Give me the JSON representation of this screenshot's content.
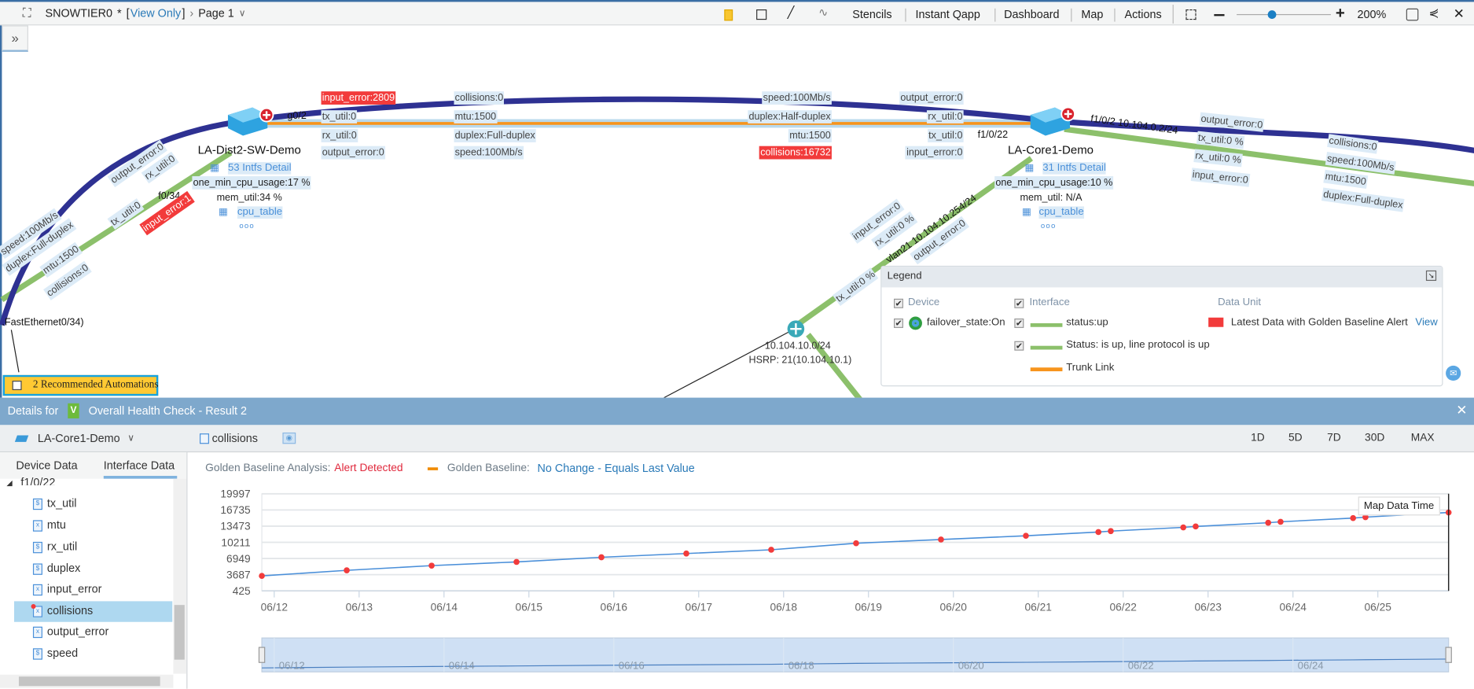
{
  "topbar": {
    "title": "SNOWTIER0",
    "modified_marker": "*",
    "mode_open": "[",
    "mode": "View Only",
    "mode_close": "]",
    "page": "Page 1",
    "tools": [
      "Stencils",
      "Instant Qapp",
      "Dashboard",
      "Map",
      "Actions"
    ],
    "zoom": "200%",
    "zoom_level_percent": 200
  },
  "map": {
    "labels": [
      {
        "text": "input_error:2809",
        "alert": true
      },
      {
        "text": "tx_util:0"
      },
      {
        "text": "rx_util:0"
      },
      {
        "text": "output_error:0"
      },
      {
        "text": "collisions:0"
      },
      {
        "text": "mtu:1500"
      },
      {
        "text": "duplex:Full-duplex"
      },
      {
        "text": "speed:100Mb/s"
      },
      {
        "text": "speed:100Mb/s"
      },
      {
        "text": "duplex:Half-duplex"
      },
      {
        "text": "mtu:1500"
      },
      {
        "text": "collisions:16732",
        "alert": true
      },
      {
        "text": "output_error:0"
      },
      {
        "text": "rx_util:0"
      },
      {
        "text": "tx_util:0"
      },
      {
        "text": "input_error:0"
      },
      {
        "text": "output_error:0"
      },
      {
        "text": "tx_util:0 %"
      },
      {
        "text": "rx_util:0 %"
      },
      {
        "text": "input_error:0"
      },
      {
        "text": "collisions:0"
      },
      {
        "text": "speed:100Mb/s"
      },
      {
        "text": "mtu:1500"
      },
      {
        "text": "duplex:Full-duplex"
      },
      {
        "text": "output_error:0"
      },
      {
        "text": "rx_util:0"
      },
      {
        "text": "tx_util:0"
      },
      {
        "text": "input_error:1",
        "alert": true
      },
      {
        "text": "speed:100Mb/s"
      },
      {
        "text": "duplex:Full-duplex"
      },
      {
        "text": "mtu:1500"
      },
      {
        "text": "collisions:0"
      },
      {
        "text": "input_error:0"
      },
      {
        "text": "rx_util:0 %"
      },
      {
        "text": "tx_util:0 %"
      },
      {
        "text": "output_error:0"
      }
    ],
    "interfaces": [
      "g0/2",
      "f1/0/22",
      "f1/0/2 10.104.0.2/24",
      "f0/34",
      "vlan21 10.104.10.254/24",
      ".FastEthernet0/34)"
    ],
    "devices": [
      {
        "name": "LA-Dist2-SW-Demo",
        "intfs": "53 Intfs Detail",
        "cpu": "one_min_cpu_usage:17 %",
        "mem": "mem_util:34 %",
        "table": "cpu_table",
        "more": "ooo"
      },
      {
        "name": "LA-Core1-Demo",
        "intfs": "31 Intfs Detail",
        "cpu": "one_min_cpu_usage:10 %",
        "mem": "mem_util: N/A",
        "table": "cpu_table",
        "more": "ooo"
      }
    ],
    "subnet": {
      "network": "10.104.10.0/24",
      "hsrp": "HSRP: 21(10.104.10.1)"
    },
    "automations": "2 Recommended Automations",
    "colors": {
      "wan_link": "#2e3192",
      "status_up": "#8cc06b",
      "trunk": "#f7941d",
      "alert": "#f23b3b"
    }
  },
  "legend": {
    "title": "Legend",
    "device_header": "Device",
    "interface_header": "Interface",
    "data_unit_header": "Data Unit",
    "device_items": [
      "failover_state:On"
    ],
    "interface_items": [
      "status:up",
      "Status: is up, line protocol is up",
      "Trunk Link"
    ],
    "data_unit_items": [
      "Latest Data with Golden Baseline Alert"
    ],
    "view_link": "View"
  },
  "details": {
    "prefix": "Details for",
    "badge": "V",
    "title": "Overall Health Check - Result 2",
    "device": "LA-Core1-Demo",
    "variable": "collisions",
    "ranges": [
      "1D",
      "5D",
      "7D",
      "30D",
      "MAX"
    ],
    "tabs": [
      "Device Data",
      "Interface Data"
    ],
    "active_tab": "Interface Data",
    "tree_parent": "f1/0/22",
    "tree_items": [
      "tx_util",
      "mtu",
      "rx_util",
      "duplex",
      "input_error",
      "collisions",
      "output_error",
      "speed"
    ],
    "tree_item_types": [
      "$",
      "x",
      "$",
      "$",
      "x",
      "x",
      "x",
      "$"
    ],
    "selected_item": "collisions",
    "analysis_label": "Golden Baseline Analysis:",
    "analysis_value": "Alert Detected",
    "baseline_label": "Golden Baseline:",
    "baseline_value": "No Change - Equals Last Value",
    "tooltip": "Map Data Time"
  },
  "chart_data": {
    "type": "line",
    "title": "",
    "xlabel": "",
    "ylabel": "",
    "y_ticks": [
      425,
      3687,
      6949,
      10211,
      13473,
      16735,
      19997
    ],
    "ylim": [
      425,
      19997
    ],
    "x_ticks": [
      "06/12",
      "06/13",
      "06/14",
      "06/15",
      "06/16",
      "06/17",
      "06/18",
      "06/19",
      "06/20",
      "06/21",
      "06/22",
      "06/23",
      "06/24",
      "06/25"
    ],
    "xlim": [
      "06/11 20:30",
      "06/25 20:00"
    ],
    "grid": true,
    "series": [
      {
        "color": "#4a8fd9",
        "marker_color": "#f23b3b",
        "points": [
          {
            "x": "06/11 20:30",
            "y": 3440
          },
          {
            "x": "06/12 20:30",
            "y": 4560
          },
          {
            "x": "06/13 20:30",
            "y": 5510
          },
          {
            "x": "06/14 20:30",
            "y": 6260
          },
          {
            "x": "06/15 20:30",
            "y": 7200
          },
          {
            "x": "06/16 20:30",
            "y": 7950
          },
          {
            "x": "06/17 20:30",
            "y": 8710
          },
          {
            "x": "06/18 20:30",
            "y": 10020
          },
          {
            "x": "06/19 20:30",
            "y": 10780
          },
          {
            "x": "06/20 20:30",
            "y": 11530
          },
          {
            "x": "06/21 17:00",
            "y": 12280
          },
          {
            "x": "06/21 20:30",
            "y": 12470
          },
          {
            "x": "06/22 17:00",
            "y": 13220
          },
          {
            "x": "06/22 20:30",
            "y": 13410
          },
          {
            "x": "06/23 17:00",
            "y": 14160
          },
          {
            "x": "06/23 20:30",
            "y": 14350
          },
          {
            "x": "06/24 17:00",
            "y": 15100
          },
          {
            "x": "06/24 20:30",
            "y": 15290
          },
          {
            "x": "06/25 20:00",
            "y": 16230
          }
        ]
      }
    ],
    "navigator_ticks": [
      "06/12",
      "06/14",
      "06/16",
      "06/18",
      "06/20",
      "06/22",
      "06/24"
    ]
  }
}
